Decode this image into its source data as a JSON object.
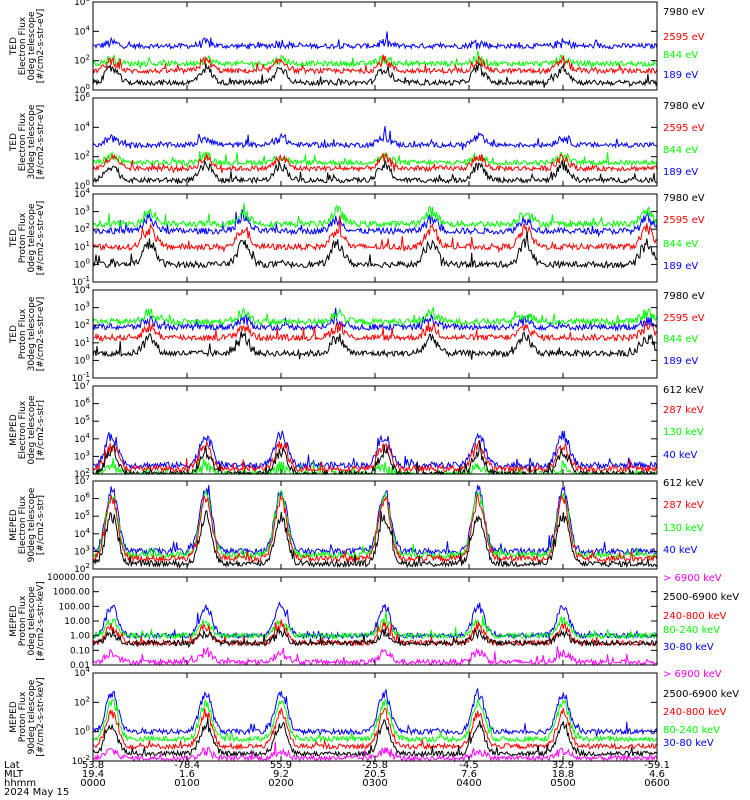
{
  "colors": {
    "black": "#000000",
    "red": "#ff0000",
    "green": "#00ff00",
    "blue": "#0000ff",
    "magenta": "#ff00ff"
  },
  "chart_data": [
    {
      "type": "line",
      "scale": "log",
      "ylim": [
        1,
        1000000
      ],
      "yticks": [
        "10^0",
        "10^2",
        "10^4",
        "10^6"
      ],
      "ylabel": [
        "TED",
        "Electron Flux",
        "0deg telescope",
        "[#/cm2-s-str-eV]"
      ],
      "legend": [
        {
          "name": "7980 eV",
          "color": "black"
        },
        {
          "name": "2595 eV",
          "color": "red"
        },
        {
          "name": "844 eV",
          "color": "green"
        },
        {
          "name": "189 eV",
          "color": "blue"
        }
      ],
      "series_levels": {
        "blue": [
          3,
          3.2
        ],
        "green": [
          1.8,
          2.1
        ],
        "red": [
          1.3,
          2.0
        ],
        "black": [
          0.5,
          1.5
        ]
      },
      "peaks_at_utc_hours": [
        0.2,
        1.2,
        2.0,
        3.1,
        4.1,
        5.0
      ]
    },
    {
      "type": "line",
      "scale": "log",
      "ylim": [
        1,
        1000000
      ],
      "yticks": [
        "10^0",
        "10^2",
        "10^4",
        "10^6"
      ],
      "ylabel": [
        "TED",
        "Electron Flux",
        "30deg telescope",
        "[#/cm2-s-str-eV]"
      ],
      "legend": [
        {
          "name": "7980 eV",
          "color": "black"
        },
        {
          "name": "2595 eV",
          "color": "red"
        },
        {
          "name": "844 eV",
          "color": "green"
        },
        {
          "name": "189 eV",
          "color": "blue"
        }
      ],
      "series_levels": {
        "blue": [
          2.8,
          3.3
        ],
        "green": [
          1.6,
          2.0
        ],
        "red": [
          1.2,
          1.9
        ],
        "black": [
          0.4,
          1.4
        ]
      },
      "peaks_at_utc_hours": [
        0.2,
        1.2,
        2.0,
        3.1,
        4.1,
        5.0
      ]
    },
    {
      "type": "line",
      "scale": "log",
      "ylim": [
        0.1,
        10000
      ],
      "yticks": [
        "10^-1",
        "10^0",
        "10^1",
        "10^2",
        "10^3",
        "10^4"
      ],
      "ylabel": [
        "TED",
        "Proton Flux",
        "0deg telescope",
        "[#/cm2-s-str-eV]"
      ],
      "legend": [
        {
          "name": "7980 eV",
          "color": "black"
        },
        {
          "name": "2595 eV",
          "color": "red"
        },
        {
          "name": "844 eV",
          "color": "green"
        },
        {
          "name": "189 eV",
          "color": "blue"
        }
      ],
      "series_levels": {
        "blue": [
          1.9,
          2.6
        ],
        "green": [
          2.3,
          3.0
        ],
        "red": [
          1.0,
          2.0
        ],
        "black": [
          0.0,
          1.2
        ]
      },
      "peaks_at_utc_hours": [
        0.6,
        1.6,
        2.6,
        3.6,
        4.6,
        5.9
      ]
    },
    {
      "type": "line",
      "scale": "log",
      "ylim": [
        0.1,
        10000
      ],
      "yticks": [
        "10^-1",
        "10^0",
        "10^1",
        "10^2",
        "10^3",
        "10^4"
      ],
      "ylabel": [
        "TED",
        "Proton Flux",
        "30deg telescope",
        "[#/cm2-s-str-eV]"
      ],
      "legend": [
        {
          "name": "7980 eV",
          "color": "black"
        },
        {
          "name": "2595 eV",
          "color": "red"
        },
        {
          "name": "844 eV",
          "color": "green"
        },
        {
          "name": "189 eV",
          "color": "blue"
        }
      ],
      "series_levels": {
        "blue": [
          1.9,
          2.3
        ],
        "green": [
          2.2,
          2.7
        ],
        "red": [
          1.3,
          1.9
        ],
        "black": [
          0.4,
          1.3
        ]
      },
      "peaks_at_utc_hours": [
        0.6,
        1.6,
        2.6,
        3.6,
        4.6,
        5.9
      ]
    },
    {
      "type": "line",
      "scale": "log",
      "ylim": [
        100,
        10000000
      ],
      "yticks": [
        "10^2",
        "10^3",
        "10^4",
        "10^5",
        "10^6",
        "10^7"
      ],
      "ylabel": [
        "MEPED",
        "Electron Flux",
        "0deg telescope",
        "[#/cm2-s-str]"
      ],
      "legend": [
        {
          "name": "612 keV",
          "color": "black"
        },
        {
          "name": "287 keV",
          "color": "red"
        },
        {
          "name": "130 keV",
          "color": "green"
        },
        {
          "name": "40 keV",
          "color": "blue"
        }
      ],
      "series_levels": {
        "blue": [
          2.5,
          4.2
        ],
        "green": [
          2.0,
          2.4
        ],
        "red": [
          2.3,
          3.6
        ],
        "black": [
          2.0,
          3.3
        ]
      },
      "peaks_at_utc_hours": [
        0.2,
        1.2,
        2.0,
        3.1,
        4.1,
        5.0
      ]
    },
    {
      "type": "line",
      "scale": "log",
      "ylim": [
        100,
        10000000
      ],
      "yticks": [
        "10^2",
        "10^3",
        "10^4",
        "10^5",
        "10^6",
        "10^7"
      ],
      "ylabel": [
        "MEPED",
        "Electron Flux",
        "90deg telescope",
        "[#/cm2-s-str]"
      ],
      "legend": [
        {
          "name": "612 keV",
          "color": "black"
        },
        {
          "name": "287 keV",
          "color": "red"
        },
        {
          "name": "130 keV",
          "color": "green"
        },
        {
          "name": "40 keV",
          "color": "blue"
        }
      ],
      "series_levels": {
        "blue": [
          3.0,
          6.5
        ],
        "green": [
          2.8,
          6.2
        ],
        "red": [
          2.6,
          6.0
        ],
        "black": [
          2.3,
          5.0
        ]
      },
      "peaks_at_utc_hours": [
        0.2,
        1.2,
        2.0,
        3.1,
        4.1,
        5.0
      ]
    },
    {
      "type": "line",
      "scale": "log",
      "ylim": [
        0.01,
        10000
      ],
      "yticks": [
        "0.01",
        "0.10",
        "1.00",
        "10.00",
        "100.00",
        "1000.00",
        "10000.00"
      ],
      "ylabel": [
        "MEPED",
        "Proton Flux",
        "0deg telescope",
        "[#/cm2-s-str-keV]"
      ],
      "legend": [
        {
          "name": "> 6900 keV",
          "color": "magenta"
        },
        {
          "name": "2500-6900 keV",
          "color": "black"
        },
        {
          "name": "240-800 keV",
          "color": "red"
        },
        {
          "name": "80-240 keV",
          "color": "green"
        },
        {
          "name": "30-80 keV",
          "color": "blue"
        }
      ],
      "series_levels": {
        "blue": [
          0.0,
          2.0
        ],
        "green": [
          0.0,
          1.0
        ],
        "red": [
          -0.5,
          0.6
        ],
        "black": [
          -0.5,
          0.2
        ],
        "magenta": [
          -1.8,
          -1.1
        ]
      },
      "peaks_at_utc_hours": [
        0.2,
        1.2,
        2.0,
        3.1,
        4.1,
        5.0
      ]
    },
    {
      "type": "line",
      "scale": "log",
      "ylim": [
        0.01,
        10000
      ],
      "yticks": [
        "10^-2",
        "10^0",
        "10^2",
        "10^4"
      ],
      "ylabel": [
        "MEPED",
        "Proton Flux",
        "90deg telescope",
        "[#/cm2-s-str-keV]"
      ],
      "legend": [
        {
          "name": "> 6900 keV",
          "color": "magenta"
        },
        {
          "name": "2500-6900 keV",
          "color": "black"
        },
        {
          "name": "240-800 keV",
          "color": "red"
        },
        {
          "name": "80-240 keV",
          "color": "green"
        },
        {
          "name": "30-80 keV",
          "color": "blue"
        }
      ],
      "series_levels": {
        "blue": [
          0.0,
          2.6
        ],
        "green": [
          -0.5,
          2.0
        ],
        "red": [
          -1.0,
          1.3
        ],
        "black": [
          -1.5,
          0.5
        ],
        "magenta": [
          -1.8,
          -1.3
        ]
      },
      "peaks_at_utc_hours": [
        0.2,
        1.2,
        2.0,
        3.1,
        4.1,
        5.0
      ]
    }
  ],
  "x_axis": {
    "range_utc_hours": [
      0,
      6
    ],
    "row_labels": [
      "Lat",
      "MLT",
      "hhmm"
    ],
    "date": "2024 May 15",
    "ticks": [
      {
        "utc_hours": 0,
        "lat": "53.8",
        "mlt": "19.4",
        "hhmm": "0000"
      },
      {
        "utc_hours": 1,
        "lat": "-78.4",
        "mlt": "1.6",
        "hhmm": "0100"
      },
      {
        "utc_hours": 2,
        "lat": "55.9",
        "mlt": "9.2",
        "hhmm": "0200"
      },
      {
        "utc_hours": 3,
        "lat": "-25.8",
        "mlt": "20.5",
        "hhmm": "0300"
      },
      {
        "utc_hours": 4,
        "lat": "-4.5",
        "mlt": "7.6",
        "hhmm": "0400"
      },
      {
        "utc_hours": 5,
        "lat": "32.9",
        "mlt": "18.8",
        "hhmm": "0500"
      },
      {
        "utc_hours": 6,
        "lat": "-59.1",
        "mlt": "4.6",
        "hhmm": "0600"
      }
    ]
  }
}
